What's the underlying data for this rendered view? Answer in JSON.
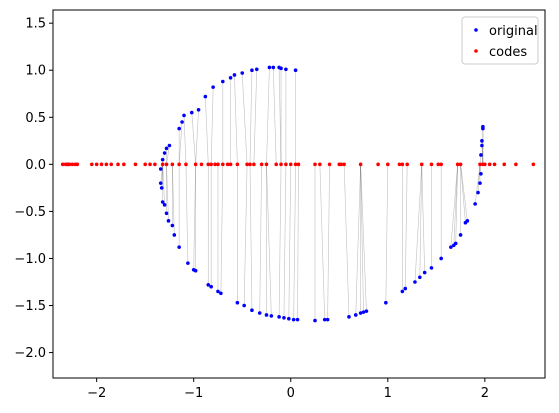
{
  "chart_data": {
    "type": "scatter",
    "title": "",
    "xlabel": "",
    "ylabel": "",
    "xlim": [
      -2.45,
      2.62
    ],
    "ylim": [
      -2.27,
      1.64
    ],
    "grid": false,
    "legend_position": "top-right",
    "x_ticks": [
      -2,
      -1,
      0,
      1,
      2
    ],
    "y_ticks": [
      -2.0,
      -1.5,
      -1.0,
      -0.5,
      0.0,
      0.5,
      1.0,
      1.5
    ],
    "x_tick_labels": [
      "−2",
      "−1",
      "0",
      "1",
      "2"
    ],
    "y_tick_labels": [
      "−2.0",
      "−1.5",
      "−1.0",
      "−0.5",
      "0.0",
      "0.5",
      "1.0",
      "1.5"
    ],
    "series": [
      {
        "name": "original",
        "color": "#0000ff",
        "x": [
          -2.3,
          0.05,
          -0.05,
          -0.1,
          -0.12,
          -0.18,
          -0.22,
          -0.35,
          -0.4,
          -0.5,
          -0.58,
          -0.62,
          -0.7,
          -0.8,
          -0.88,
          -0.95,
          -1.02,
          -1.1,
          -1.12,
          -1.15,
          -1.25,
          -1.28,
          -1.3,
          -1.32,
          -1.34,
          -1.34,
          -1.33,
          -1.32,
          -1.3,
          -1.28,
          -1.26,
          -1.22,
          -1.2,
          -1.15,
          -1.06,
          -1.0,
          -0.98,
          -0.85,
          -0.82,
          -0.75,
          -0.72,
          -0.55,
          -0.48,
          -0.4,
          -0.32,
          -0.25,
          -0.2,
          -0.12,
          -0.07,
          -0.02,
          0.03,
          0.07,
          0.25,
          0.35,
          0.38,
          0.6,
          0.67,
          0.72,
          0.75,
          0.78,
          0.98,
          1.15,
          1.18,
          1.28,
          1.33,
          1.38,
          1.45,
          1.55,
          1.65,
          1.68,
          1.7,
          1.75,
          1.8,
          1.82,
          1.9,
          1.93,
          1.95,
          1.96,
          1.96,
          1.97,
          1.97,
          1.98,
          1.98
        ],
        "y": [
          0.0,
          1.0,
          1.01,
          1.02,
          1.03,
          1.03,
          1.03,
          1.01,
          1.0,
          0.97,
          0.95,
          0.92,
          0.88,
          0.82,
          0.72,
          0.58,
          0.55,
          0.52,
          0.45,
          0.38,
          0.2,
          0.17,
          0.12,
          0.05,
          -0.05,
          -0.2,
          -0.25,
          -0.4,
          -0.43,
          -0.52,
          -0.6,
          -0.65,
          -0.75,
          -0.88,
          -1.05,
          -1.12,
          -1.13,
          -1.28,
          -1.3,
          -1.35,
          -1.37,
          -1.47,
          -1.5,
          -1.55,
          -1.58,
          -1.6,
          -1.61,
          -1.62,
          -1.63,
          -1.64,
          -1.65,
          -1.65,
          -1.66,
          -1.65,
          -1.65,
          -1.62,
          -1.6,
          -1.58,
          -1.57,
          -1.56,
          -1.47,
          -1.35,
          -1.32,
          -1.25,
          -1.2,
          -1.15,
          -1.1,
          -1.0,
          -0.88,
          -0.86,
          -0.84,
          -0.75,
          -0.62,
          -0.6,
          -0.42,
          -0.3,
          -0.2,
          -0.1,
          0.1,
          0.2,
          0.25,
          0.38,
          0.4
        ]
      },
      {
        "name": "codes",
        "color": "#ff0000",
        "x": [
          -2.35,
          -2.32,
          -2.3,
          -2.28,
          -2.25,
          -2.22,
          -2.2,
          -2.05,
          -2.0,
          -1.95,
          -1.9,
          -1.85,
          -1.78,
          -1.72,
          -1.6,
          -1.5,
          -1.45,
          -1.4,
          -1.32,
          -1.28,
          -1.22,
          -1.15,
          -1.08,
          -0.98,
          -0.92,
          -0.85,
          -0.82,
          -0.78,
          -0.75,
          -0.7,
          -0.65,
          -0.62,
          -0.55,
          -0.45,
          -0.42,
          -0.38,
          -0.3,
          -0.25,
          -0.15,
          -0.1,
          -0.05,
          0.0,
          0.05,
          0.08,
          0.25,
          0.3,
          0.4,
          0.5,
          0.52,
          0.55,
          0.72,
          0.9,
          1.0,
          1.12,
          1.15,
          1.2,
          1.35,
          1.45,
          1.52,
          1.55,
          1.72,
          1.75,
          1.95,
          1.98,
          2.0,
          2.05,
          2.1,
          2.2,
          2.32,
          2.5
        ],
        "y": [
          0,
          0,
          0,
          0,
          0,
          0,
          0,
          0,
          0,
          0,
          0,
          0,
          0,
          0,
          0,
          0,
          0,
          0,
          0,
          0,
          0,
          0,
          0,
          0,
          0,
          0,
          0,
          0,
          0,
          0,
          0,
          0,
          0,
          0,
          0,
          0,
          0,
          0,
          0,
          0,
          0,
          0,
          0,
          0,
          0,
          0,
          0,
          0,
          0,
          0,
          0,
          0,
          0,
          0,
          0,
          0,
          0,
          0,
          0,
          0,
          0,
          0,
          0,
          0,
          0,
          0,
          0,
          0,
          0,
          0
        ]
      }
    ]
  }
}
